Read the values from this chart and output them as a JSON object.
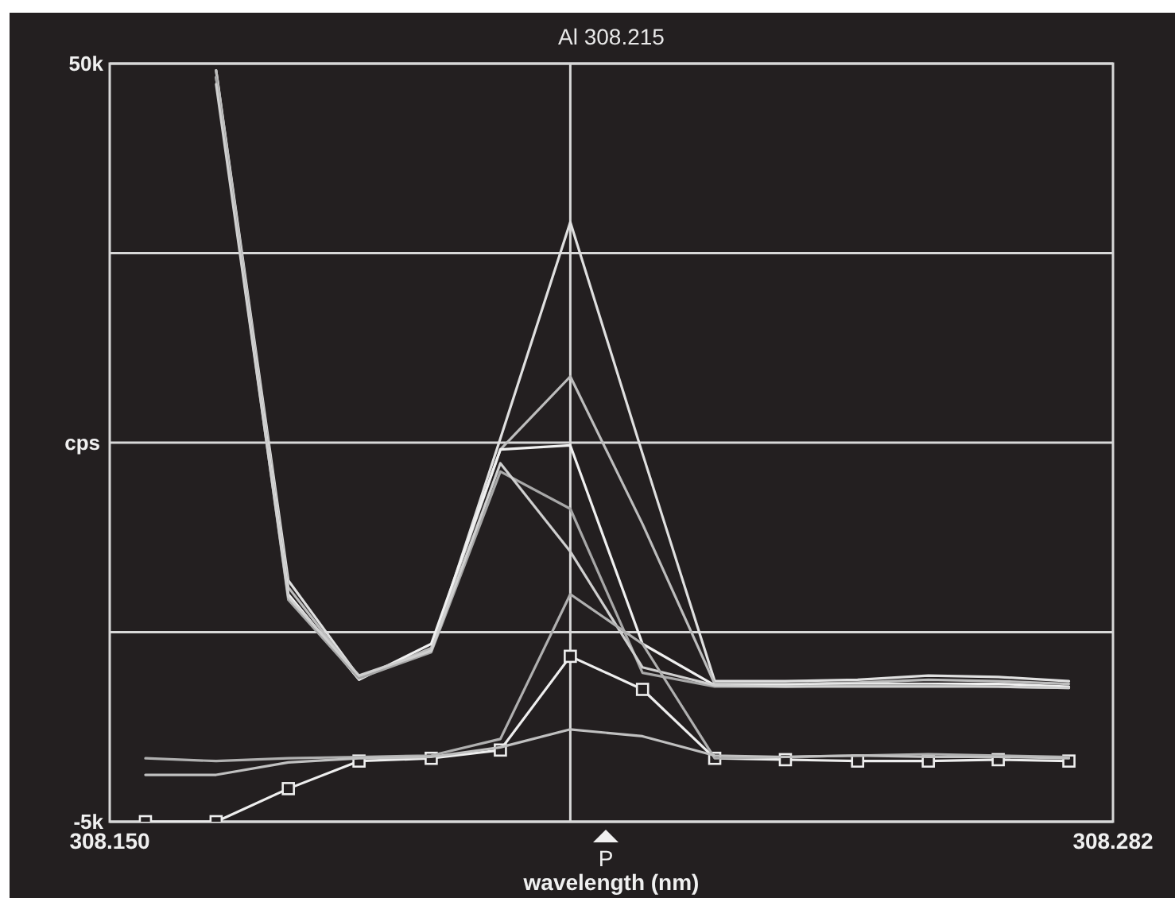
{
  "chart_data": {
    "type": "line",
    "title": "Al 308.215",
    "xlabel": "wavelength (nm)",
    "ylabel": "cps",
    "x": [
      308.1547,
      308.164,
      308.1735,
      308.1828,
      308.1923,
      308.2014,
      308.2106,
      308.2201,
      308.2296,
      308.2389,
      308.2484,
      308.2577,
      308.2669,
      308.2762
    ],
    "series": [
      {
        "color": "#e0e0e0",
        "values": [
          null,
          49.5,
          12.5,
          5.5,
          7.5,
          22.8,
          38.5,
          21.7,
          5.2,
          5.2,
          5.3,
          5.6,
          5.5,
          5.2
        ]
      },
      {
        "color": "#bdbdbd",
        "values": [
          null,
          49.5,
          12.0,
          5.4,
          7.6,
          22.0,
          27.3,
          16.6,
          5.0,
          5.0,
          5.1,
          5.3,
          5.2,
          5.0
        ]
      },
      {
        "color": "#f0f0f0",
        "values": [
          null,
          49.0,
          11.5,
          5.3,
          7.9,
          22.0,
          22.3,
          7.9,
          4.9,
          4.9,
          5.0,
          5.0,
          5.0,
          4.8
        ]
      },
      {
        "color": "#a8a8a8",
        "values": [
          null,
          49.0,
          11.1,
          5.4,
          7.3,
          20.4,
          17.7,
          5.8,
          4.8,
          4.8,
          4.9,
          4.9,
          4.8,
          4.7
        ]
      },
      {
        "color": "#cfcfcf",
        "values": [
          null,
          48.5,
          11.3,
          5.6,
          7.4,
          21.0,
          14.6,
          6.2,
          4.9,
          4.8,
          4.8,
          4.8,
          4.8,
          4.7
        ]
      },
      {
        "color": "#eeeeee",
        "marker": "square",
        "values": [
          -5.0,
          -5.0,
          -2.6,
          -0.6,
          -0.4,
          0.2,
          7.0,
          4.6,
          -0.4,
          -0.5,
          -0.6,
          -0.6,
          -0.5,
          -0.6
        ]
      },
      {
        "color": "#b0b0b0",
        "values": [
          -0.4,
          -0.6,
          -0.4,
          -0.3,
          -0.2,
          1.0,
          11.5,
          7.9,
          -0.4,
          -0.3,
          -0.2,
          -0.1,
          -0.2,
          -0.3
        ]
      },
      {
        "color": "#c0c0c0",
        "values": [
          -1.6,
          -1.6,
          -0.7,
          -0.4,
          -0.3,
          0.4,
          1.7,
          1.2,
          -0.2,
          -0.3,
          -0.2,
          -0.3,
          -0.3,
          -0.4
        ]
      }
    ],
    "xlim": [
      308.15,
      308.282
    ],
    "xticks": [
      {
        "value": 308.15,
        "label": "308.150"
      },
      {
        "value": 308.282,
        "label": "308.282"
      }
    ],
    "ylim": [
      -5,
      50
    ],
    "yticks": [
      {
        "value": -5,
        "label": "-5k"
      },
      {
        "value": 8.75,
        "label": null
      },
      {
        "value": 22.5,
        "label": null
      },
      {
        "value": 36.25,
        "label": null
      },
      {
        "value": 50,
        "label": "50k"
      }
    ],
    "grid": "y",
    "ref_lines": [
      {
        "axis": "x",
        "value": 308.2106
      }
    ],
    "annotations": [
      "P"
    ]
  }
}
